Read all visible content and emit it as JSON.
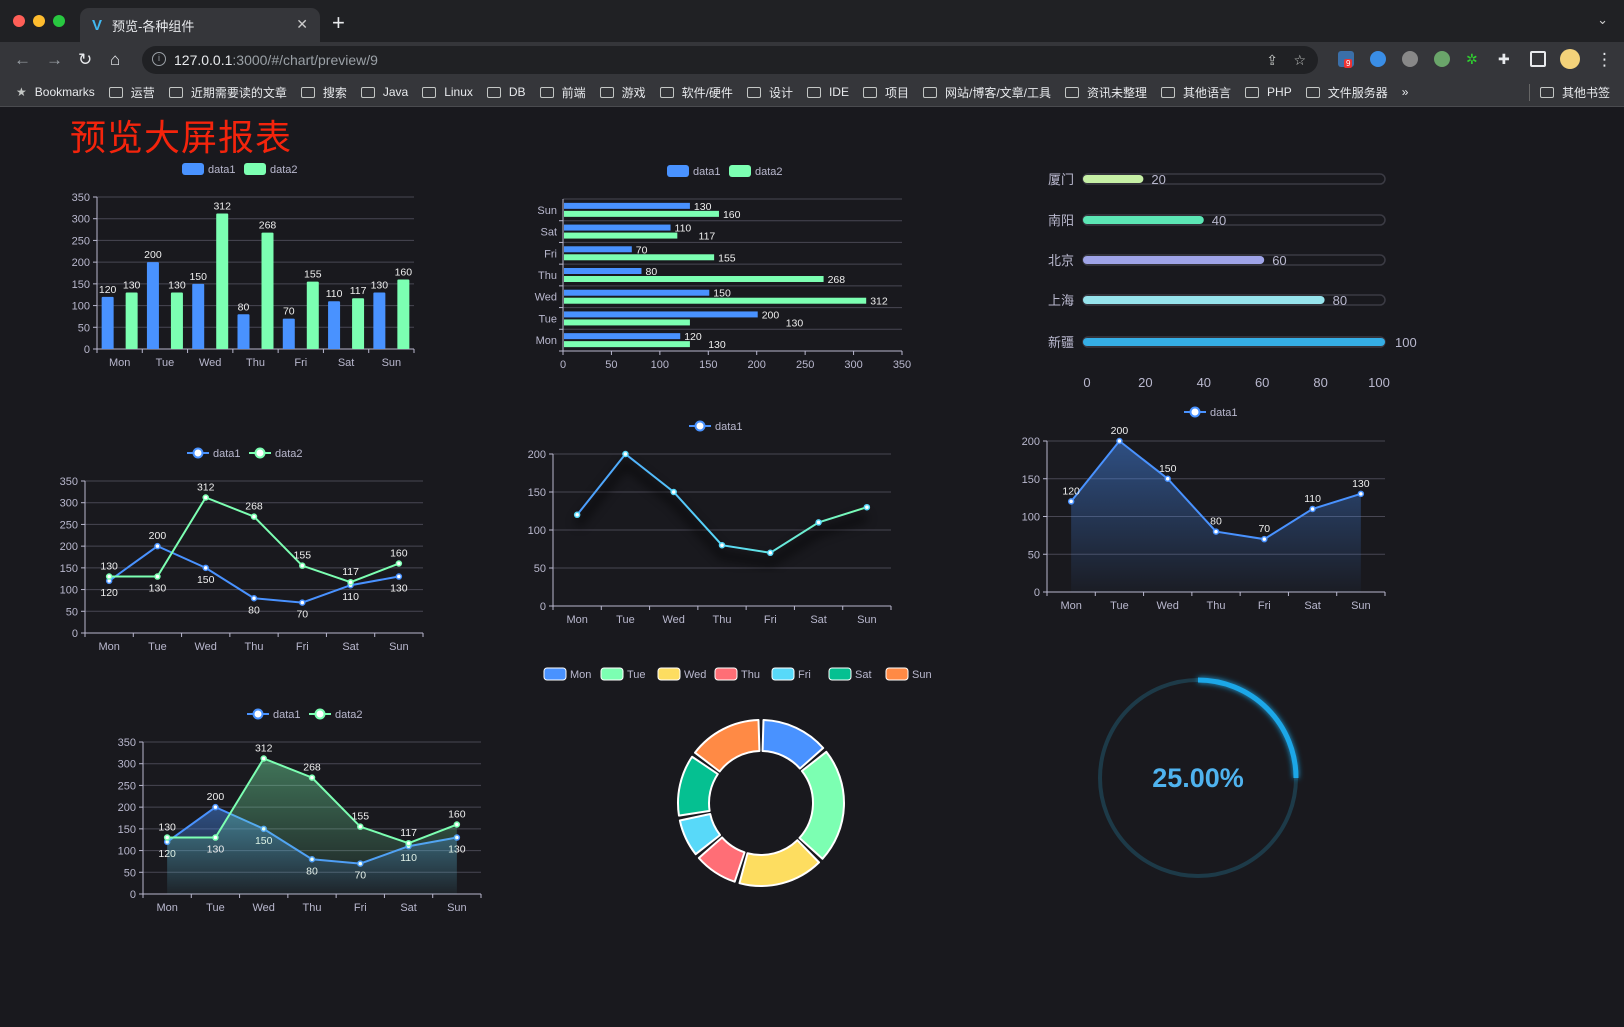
{
  "browser": {
    "tab_title": "预览-各种组件",
    "url_host": "127.0.0.1",
    "url_rest": ":3000/#/chart/preview/9",
    "extension_badge": "9",
    "bookmarks_label": "Bookmarks",
    "bookmarks": [
      "运营",
      "近期需要读的文章",
      "搜索",
      "Java",
      "Linux",
      "DB",
      "前端",
      "游戏",
      "软件/硬件",
      "设计",
      "IDE",
      "项目",
      "网站/博客/文章/工具",
      "资讯未整理",
      "其他语言",
      "PHP",
      "文件服务器"
    ],
    "overflow": "»",
    "other_bookmarks": "其他书签"
  },
  "page": {
    "title": "预览大屏报表",
    "title_color": "#f4240c",
    "background": "#19191e"
  },
  "colors": {
    "data1": "#4992ff",
    "data2": "#7cffb2",
    "axis": "#b9b8ce",
    "grid": "#484753"
  },
  "chart_data": [
    {
      "type": "bar",
      "legend": [
        "data1",
        "data2"
      ],
      "categories": [
        "Mon",
        "Tue",
        "Wed",
        "Thu",
        "Fri",
        "Sat",
        "Sun"
      ],
      "series": [
        {
          "name": "data1",
          "values": [
            120,
            200,
            150,
            80,
            70,
            110,
            130
          ]
        },
        {
          "name": "data2",
          "values": [
            130,
            130,
            312,
            268,
            155,
            117,
            160
          ]
        }
      ],
      "ylim": [
        0,
        350
      ],
      "yticks": [
        "0",
        "50",
        "100",
        "150",
        "200",
        "250",
        "300",
        "350"
      ],
      "grid": true,
      "legend_position": "top"
    },
    {
      "type": "bar",
      "orientation": "horizontal",
      "legend": [
        "data1",
        "data2"
      ],
      "categories": [
        "Mon",
        "Tue",
        "Wed",
        "Thu",
        "Fri",
        "Sat",
        "Sun"
      ],
      "series": [
        {
          "name": "data1",
          "values": [
            120,
            200,
            150,
            80,
            70,
            110,
            130
          ]
        },
        {
          "name": "data2",
          "values": [
            130,
            130,
            312,
            268,
            155,
            117,
            160
          ]
        }
      ],
      "xlim": [
        0,
        350
      ],
      "xticks": [
        "0",
        "50",
        "100",
        "150",
        "200",
        "250",
        "300",
        "350"
      ],
      "grid": true,
      "legend_position": "top"
    },
    {
      "type": "bar",
      "orientation": "horizontal",
      "style": "progress",
      "categories": [
        "厦门",
        "南阳",
        "北京",
        "上海",
        "新疆"
      ],
      "values": [
        20,
        40,
        60,
        80,
        100
      ],
      "colors": [
        "#c6efa5",
        "#5ce6b5",
        "#9fa4e8",
        "#96e3ec",
        "#35aee6"
      ],
      "xlim": [
        0,
        100
      ],
      "xticks": [
        "0",
        "20",
        "40",
        "60",
        "80",
        "100"
      ]
    },
    {
      "type": "line",
      "legend": [
        "data1",
        "data2"
      ],
      "categories": [
        "Mon",
        "Tue",
        "Wed",
        "Thu",
        "Fri",
        "Sat",
        "Sun"
      ],
      "series": [
        {
          "name": "data1",
          "values": [
            120,
            200,
            150,
            80,
            70,
            110,
            130
          ]
        },
        {
          "name": "data2",
          "values": [
            130,
            130,
            312,
            268,
            155,
            117,
            160
          ]
        }
      ],
      "ylim": [
        0,
        350
      ],
      "yticks": [
        "0",
        "50",
        "100",
        "150",
        "200",
        "250",
        "300",
        "350"
      ],
      "grid": true,
      "legend_position": "top"
    },
    {
      "type": "line",
      "legend": [
        "data1"
      ],
      "categories": [
        "Mon",
        "Tue",
        "Wed",
        "Thu",
        "Fri",
        "Sat",
        "Sun"
      ],
      "series": [
        {
          "name": "data1",
          "values": [
            120,
            200,
            150,
            80,
            70,
            110,
            130
          ]
        }
      ],
      "ylim": [
        0,
        200
      ],
      "yticks": [
        "0",
        "50",
        "100",
        "150",
        "200"
      ],
      "grid": true,
      "gradient_line": true,
      "legend_position": "top"
    },
    {
      "type": "area",
      "legend": [
        "data1"
      ],
      "categories": [
        "Mon",
        "Tue",
        "Wed",
        "Thu",
        "Fri",
        "Sat",
        "Sun"
      ],
      "series": [
        {
          "name": "data1",
          "values": [
            120,
            200,
            150,
            80,
            70,
            110,
            130
          ]
        }
      ],
      "ylim": [
        0,
        200
      ],
      "yticks": [
        "0",
        "50",
        "100",
        "150",
        "200"
      ],
      "grid": true,
      "legend_position": "top"
    },
    {
      "type": "area",
      "legend": [
        "data1",
        "data2"
      ],
      "categories": [
        "Mon",
        "Tue",
        "Wed",
        "Thu",
        "Fri",
        "Sat",
        "Sun"
      ],
      "series": [
        {
          "name": "data1",
          "values": [
            120,
            200,
            150,
            80,
            70,
            110,
            130
          ]
        },
        {
          "name": "data2",
          "values": [
            130,
            130,
            312,
            268,
            155,
            117,
            160
          ]
        }
      ],
      "ylim": [
        0,
        350
      ],
      "yticks": [
        "0",
        "50",
        "100",
        "150",
        "200",
        "250",
        "300",
        "350"
      ],
      "grid": true,
      "legend_position": "top"
    },
    {
      "type": "pie",
      "style": "donut",
      "legend": [
        "Mon",
        "Tue",
        "Wed",
        "Thu",
        "Fri",
        "Sat",
        "Sun"
      ],
      "values": [
        120,
        200,
        150,
        80,
        70,
        110,
        130
      ],
      "colors": [
        "#4992ff",
        "#7cffb2",
        "#fddd60",
        "#ff6e76",
        "#58d9f9",
        "#05c091",
        "#ff8a45"
      ],
      "legend_position": "top"
    },
    {
      "type": "gauge",
      "value": 0.25,
      "label": "25.00%",
      "color": "#1ea7e8",
      "track_color": "#1d3a48",
      "text_color": "#4fb3ef"
    }
  ]
}
